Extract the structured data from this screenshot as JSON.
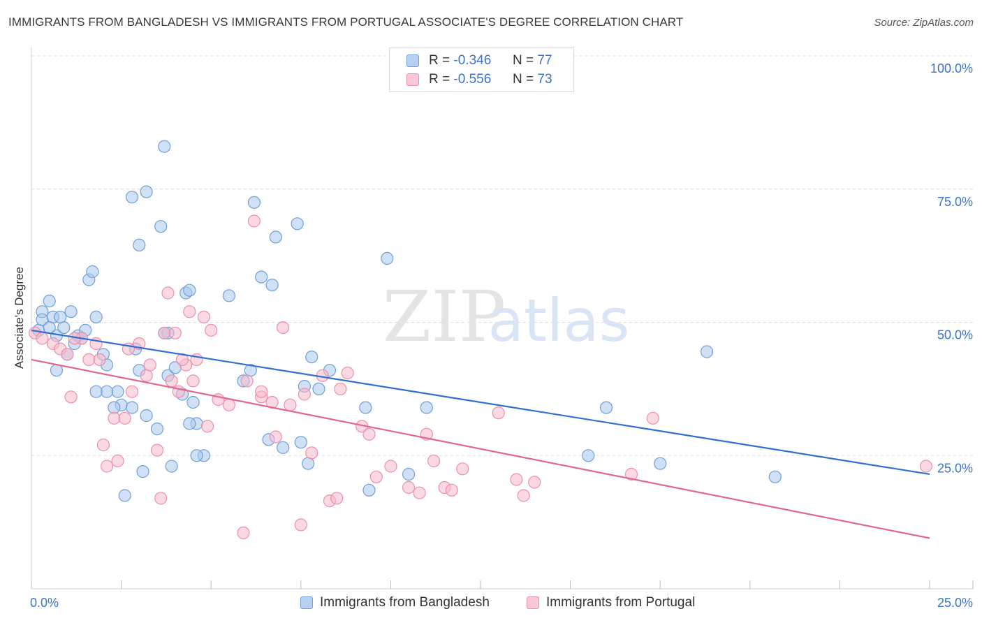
{
  "title": "IMMIGRANTS FROM BANGLADESH VS IMMIGRANTS FROM PORTUGAL ASSOCIATE'S DEGREE CORRELATION CHART",
  "source": "Source: ZipAtlas.com",
  "watermark": {
    "zip": "ZIP",
    "atlas": "atlas"
  },
  "colors": {
    "blue_fill": "#a9c8ef",
    "blue_stroke": "#6f9fd8",
    "blue_line": "#2f6fcf",
    "pink_fill": "#f6b9cb",
    "pink_stroke": "#ec8fab",
    "pink_line": "#e0668f",
    "axis_text": "#3a73c8",
    "grid": "#dddddd"
  },
  "stats_legend": [
    {
      "r_label": "R =",
      "r_value": "-0.346",
      "n_label": "N =",
      "n_value": "77"
    },
    {
      "r_label": "R =",
      "r_value": "-0.556",
      "n_label": "N =",
      "n_value": "73"
    }
  ],
  "bottom_legend": [
    {
      "label": "Immigrants from Bangladesh"
    },
    {
      "label": "Immigrants from Portugal"
    }
  ],
  "chart_data": {
    "type": "scatter",
    "title": "IMMIGRANTS FROM BANGLADESH VS IMMIGRANTS FROM PORTUGAL ASSOCIATE'S DEGREE CORRELATION CHART",
    "xlabel": "",
    "ylabel": "Associate's Degree",
    "xlim": [
      0,
      25
    ],
    "ylim": [
      0,
      100
    ],
    "x_tick_labels": [
      "0.0%",
      "25.0%"
    ],
    "y_tick_labels": [
      "100.0%",
      "75.0%",
      "50.0%",
      "25.0%"
    ],
    "y_ticks": [
      100,
      75,
      50,
      25
    ],
    "series": [
      {
        "name": "Immigrants from Bangladesh",
        "trend": {
          "x": [
            0,
            25
          ],
          "y": [
            48.5,
            21.5
          ]
        },
        "points": [
          [
            0.2,
            48.5
          ],
          [
            0.3,
            52
          ],
          [
            0.5,
            54
          ],
          [
            0.3,
            50.5
          ],
          [
            0.6,
            51
          ],
          [
            0.7,
            47.5
          ],
          [
            0.9,
            49
          ],
          [
            1.1,
            52
          ],
          [
            1.3,
            47.5
          ],
          [
            1.5,
            48.5
          ],
          [
            0.5,
            49
          ],
          [
            0.7,
            41
          ],
          [
            1.0,
            44
          ],
          [
            1.2,
            46
          ],
          [
            1.8,
            51
          ],
          [
            2.0,
            44
          ],
          [
            2.1,
            42
          ],
          [
            2.4,
            37
          ],
          [
            2.5,
            34.5
          ],
          [
            2.8,
            73.5
          ],
          [
            3.2,
            74.5
          ],
          [
            3.0,
            64.5
          ],
          [
            3.7,
            83
          ],
          [
            3.6,
            68
          ],
          [
            1.6,
            58
          ],
          [
            1.7,
            59.5
          ],
          [
            2.1,
            37
          ],
          [
            2.3,
            34
          ],
          [
            3.0,
            41
          ],
          [
            3.5,
            30
          ],
          [
            3.8,
            40
          ],
          [
            3.1,
            22
          ],
          [
            4.0,
            41.5
          ],
          [
            4.3,
            55.5
          ],
          [
            4.4,
            56
          ],
          [
            3.8,
            48
          ],
          [
            3.9,
            23
          ],
          [
            4.2,
            36.5
          ],
          [
            4.5,
            35
          ],
          [
            4.6,
            31
          ],
          [
            4.8,
            25
          ],
          [
            5.5,
            55
          ],
          [
            5.9,
            39
          ],
          [
            6.1,
            41
          ],
          [
            6.2,
            72.5
          ],
          [
            6.4,
            58.5
          ],
          [
            6.7,
            57
          ],
          [
            6.8,
            66
          ],
          [
            7.0,
            26.5
          ],
          [
            7.4,
            68.5
          ],
          [
            7.5,
            27.5
          ],
          [
            7.6,
            38
          ],
          [
            7.7,
            23.5
          ],
          [
            7.8,
            43.5
          ],
          [
            8.0,
            37.5
          ],
          [
            8.3,
            41
          ],
          [
            9.3,
            34
          ],
          [
            9.4,
            18.5
          ],
          [
            9.9,
            62
          ],
          [
            10.5,
            21.5
          ],
          [
            11.0,
            34
          ],
          [
            15.5,
            25
          ],
          [
            16.0,
            34
          ],
          [
            17.5,
            23.5
          ],
          [
            18.8,
            44.5
          ],
          [
            20.7,
            21
          ],
          [
            3.2,
            32.5
          ],
          [
            2.9,
            45
          ],
          [
            1.8,
            37
          ],
          [
            2.8,
            34
          ],
          [
            3.7,
            48
          ],
          [
            4.6,
            25
          ],
          [
            6.6,
            28
          ],
          [
            2.6,
            17.5
          ],
          [
            1.4,
            47
          ],
          [
            0.8,
            51
          ],
          [
            4.4,
            31
          ]
        ]
      },
      {
        "name": "Immigrants from Portugal",
        "trend": {
          "x": [
            0,
            25
          ],
          "y": [
            43,
            9.5
          ]
        },
        "points": [
          [
            0.1,
            48
          ],
          [
            0.3,
            47
          ],
          [
            0.6,
            46
          ],
          [
            0.8,
            45
          ],
          [
            1.0,
            44
          ],
          [
            1.1,
            36
          ],
          [
            1.4,
            47
          ],
          [
            1.6,
            43
          ],
          [
            1.8,
            46
          ],
          [
            1.9,
            43
          ],
          [
            2.0,
            27
          ],
          [
            2.3,
            32
          ],
          [
            2.4,
            24
          ],
          [
            2.6,
            32
          ],
          [
            2.7,
            45
          ],
          [
            2.8,
            37
          ],
          [
            3.0,
            46
          ],
          [
            3.2,
            40
          ],
          [
            3.3,
            42
          ],
          [
            3.5,
            26
          ],
          [
            3.6,
            17
          ],
          [
            3.7,
            48
          ],
          [
            3.8,
            55.5
          ],
          [
            4.0,
            48
          ],
          [
            4.1,
            37
          ],
          [
            4.3,
            42
          ],
          [
            4.4,
            52
          ],
          [
            4.5,
            39
          ],
          [
            4.6,
            43
          ],
          [
            4.8,
            51
          ],
          [
            4.9,
            30.5
          ],
          [
            5.0,
            48.5
          ],
          [
            5.2,
            35.5
          ],
          [
            5.5,
            34.5
          ],
          [
            5.9,
            10.5
          ],
          [
            6.0,
            39
          ],
          [
            6.2,
            69
          ],
          [
            6.4,
            36
          ],
          [
            6.7,
            35
          ],
          [
            6.8,
            28.5
          ],
          [
            7.0,
            49
          ],
          [
            7.2,
            34.5
          ],
          [
            7.5,
            12
          ],
          [
            7.6,
            36.5
          ],
          [
            7.8,
            25.5
          ],
          [
            8.1,
            40
          ],
          [
            8.3,
            16.5
          ],
          [
            8.5,
            17
          ],
          [
            8.6,
            37.5
          ],
          [
            8.8,
            40.5
          ],
          [
            9.2,
            30.5
          ],
          [
            9.4,
            29
          ],
          [
            9.6,
            21
          ],
          [
            10.0,
            23
          ],
          [
            10.5,
            19
          ],
          [
            10.8,
            18
          ],
          [
            11.0,
            29
          ],
          [
            11.2,
            24
          ],
          [
            11.5,
            19
          ],
          [
            11.7,
            18.5
          ],
          [
            12.0,
            22.5
          ],
          [
            13.0,
            33
          ],
          [
            13.5,
            20.5
          ],
          [
            13.7,
            17.5
          ],
          [
            14.0,
            20
          ],
          [
            16.7,
            21.5
          ],
          [
            17.3,
            32
          ],
          [
            24.9,
            23
          ],
          [
            1.2,
            47
          ],
          [
            3.9,
            39
          ],
          [
            6.4,
            37
          ],
          [
            4.2,
            43
          ],
          [
            2.1,
            23
          ]
        ]
      }
    ]
  }
}
